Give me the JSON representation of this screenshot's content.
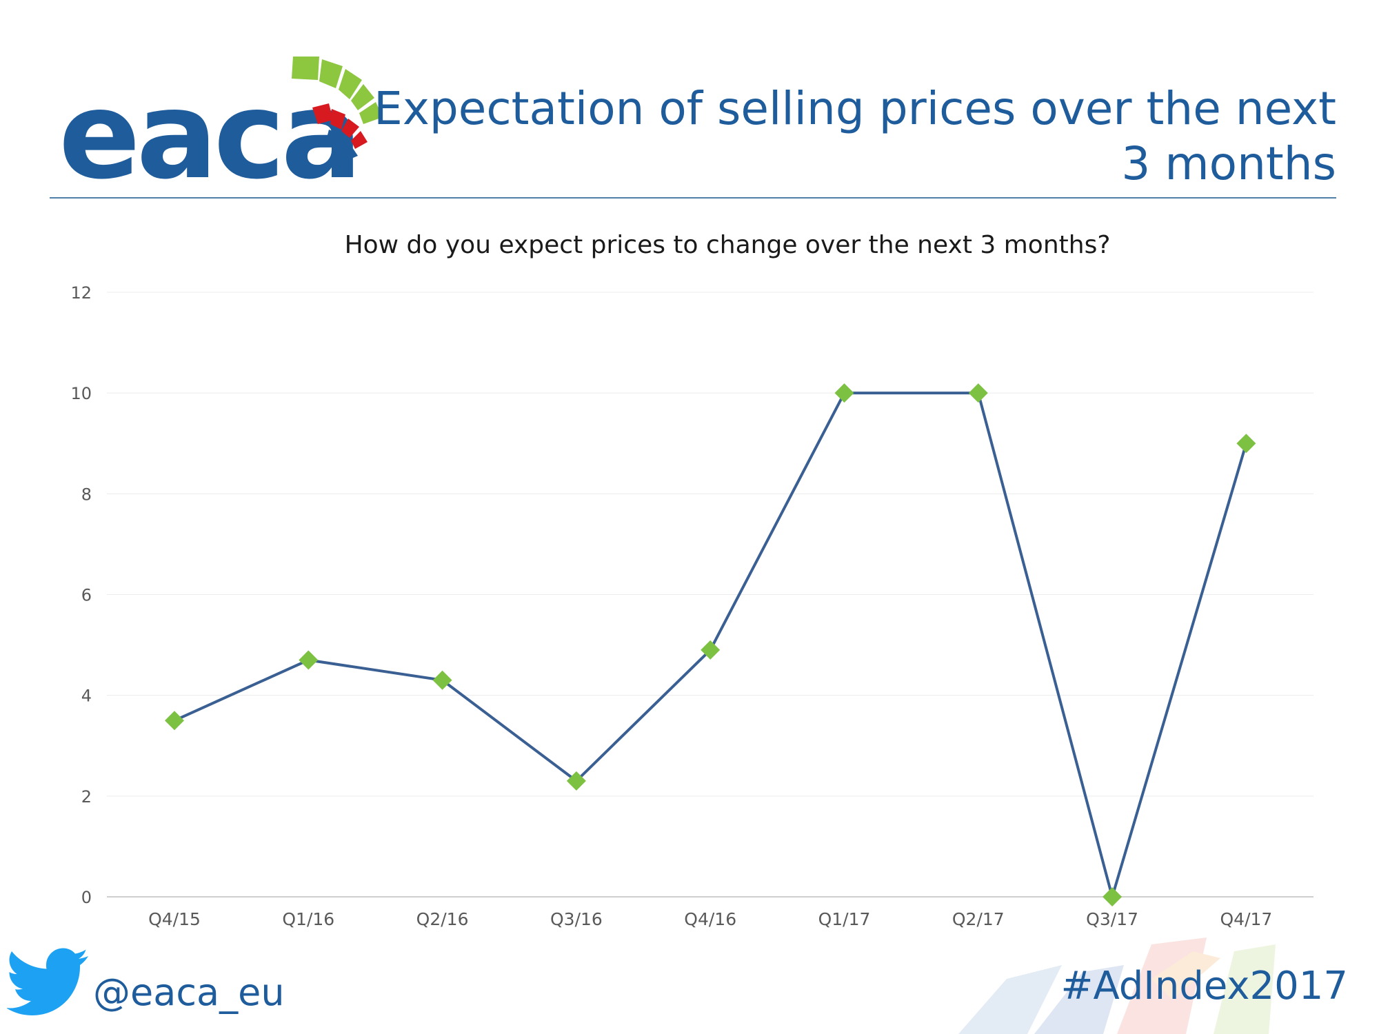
{
  "header": {
    "logo_text": "eaca",
    "title_line1": "Expectation of selling prices over the next",
    "title_line2": "3 months"
  },
  "footer": {
    "twitter_handle": "@eaca_eu",
    "hashtag": "#AdIndex2017"
  },
  "colors": {
    "brand": "#1f5c9c",
    "line": "#3a5f93",
    "marker": "#7dc142",
    "logo_green": "#8dc63f",
    "logo_red": "#d71920"
  },
  "icons": [
    "twitter-bird-icon"
  ],
  "chart_data": {
    "type": "line",
    "title": "How do you expect prices to change over the next 3 months?",
    "categories": [
      "Q4/15",
      "Q1/16",
      "Q2/16",
      "Q3/16",
      "Q4/16",
      "Q1/17",
      "Q2/17",
      "Q3/17",
      "Q4/17"
    ],
    "series": [
      {
        "values": [
          3.5,
          4.7,
          4.3,
          2.3,
          4.9,
          10,
          10,
          0,
          9
        ]
      }
    ],
    "ylim": [
      0,
      12
    ],
    "yticks": [
      0,
      2,
      4,
      6,
      8,
      10,
      12
    ],
    "xlabel": "",
    "ylabel": "",
    "grid": true,
    "legend": "none",
    "marker": "diamond"
  }
}
